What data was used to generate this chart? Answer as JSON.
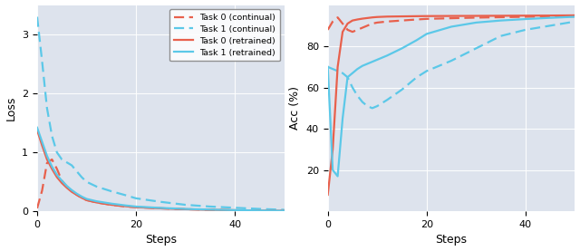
{
  "bg_color": "#dde3ed",
  "red_color": "#e8604c",
  "blue_color": "#5bc8e8",
  "loss": {
    "steps": [
      0,
      1,
      2,
      3,
      4,
      5,
      6,
      7,
      8,
      9,
      10,
      12,
      15,
      18,
      20,
      25,
      30,
      35,
      40,
      45,
      50
    ],
    "task0_continual": [
      0.05,
      0.35,
      0.82,
      0.88,
      0.72,
      0.52,
      0.42,
      0.35,
      0.28,
      0.23,
      0.19,
      0.15,
      0.11,
      0.08,
      0.07,
      0.05,
      0.035,
      0.025,
      0.018,
      0.012,
      0.008
    ],
    "task1_continual": [
      3.3,
      2.55,
      1.75,
      1.28,
      1.0,
      0.88,
      0.83,
      0.78,
      0.68,
      0.58,
      0.5,
      0.42,
      0.34,
      0.27,
      0.22,
      0.16,
      0.11,
      0.08,
      0.06,
      0.04,
      0.025
    ],
    "task0_retrained": [
      1.38,
      1.12,
      0.88,
      0.72,
      0.58,
      0.48,
      0.4,
      0.33,
      0.28,
      0.23,
      0.19,
      0.15,
      0.11,
      0.085,
      0.07,
      0.05,
      0.035,
      0.025,
      0.018,
      0.012,
      0.008
    ],
    "task1_retrained": [
      1.42,
      1.18,
      0.94,
      0.76,
      0.62,
      0.52,
      0.43,
      0.36,
      0.3,
      0.25,
      0.21,
      0.17,
      0.13,
      0.098,
      0.08,
      0.057,
      0.04,
      0.028,
      0.02,
      0.013,
      0.008
    ]
  },
  "acc": {
    "steps": [
      0,
      1,
      2,
      3,
      4,
      5,
      6,
      7,
      8,
      9,
      10,
      12,
      15,
      18,
      20,
      25,
      30,
      35,
      40,
      45,
      50
    ],
    "task0_continual": [
      88,
      92,
      94,
      91,
      88,
      87,
      88,
      89,
      90,
      91,
      91.5,
      92,
      92.5,
      93,
      93.3,
      93.6,
      93.9,
      94.1,
      94.3,
      94.4,
      94.5
    ],
    "task1_continual": [
      70,
      69,
      68,
      67,
      65,
      60,
      56,
      53,
      51,
      50,
      51,
      54,
      59,
      65,
      68,
      73,
      79,
      85,
      88,
      90,
      92
    ],
    "task0_retrained": [
      8,
      30,
      70,
      87,
      91,
      92.5,
      93,
      93.4,
      93.7,
      94,
      94.2,
      94.4,
      94.5,
      94.6,
      94.65,
      94.7,
      94.75,
      94.8,
      94.85,
      94.9,
      95
    ],
    "task1_retrained": [
      70,
      20,
      17,
      45,
      65,
      67,
      69,
      70.5,
      71.5,
      72.5,
      73.5,
      75.5,
      79,
      83,
      86,
      89.5,
      91.5,
      92.5,
      93.2,
      93.8,
      94.3
    ]
  },
  "legend_labels": [
    "Task 0 (continual)",
    "Task 1 (continual)",
    "Task 0 (retrained)",
    "Task 1 (retrained)"
  ],
  "loss_ylabel": "Loss",
  "acc_ylabel": "Acc (%)",
  "xlabel": "Steps",
  "loss_ylim": [
    0,
    3.5
  ],
  "acc_ylim": [
    0,
    100
  ],
  "loss_yticks": [
    0,
    1,
    2,
    3
  ],
  "acc_yticks": [
    20,
    40,
    60,
    80
  ],
  "xticks": [
    0,
    20,
    40
  ]
}
